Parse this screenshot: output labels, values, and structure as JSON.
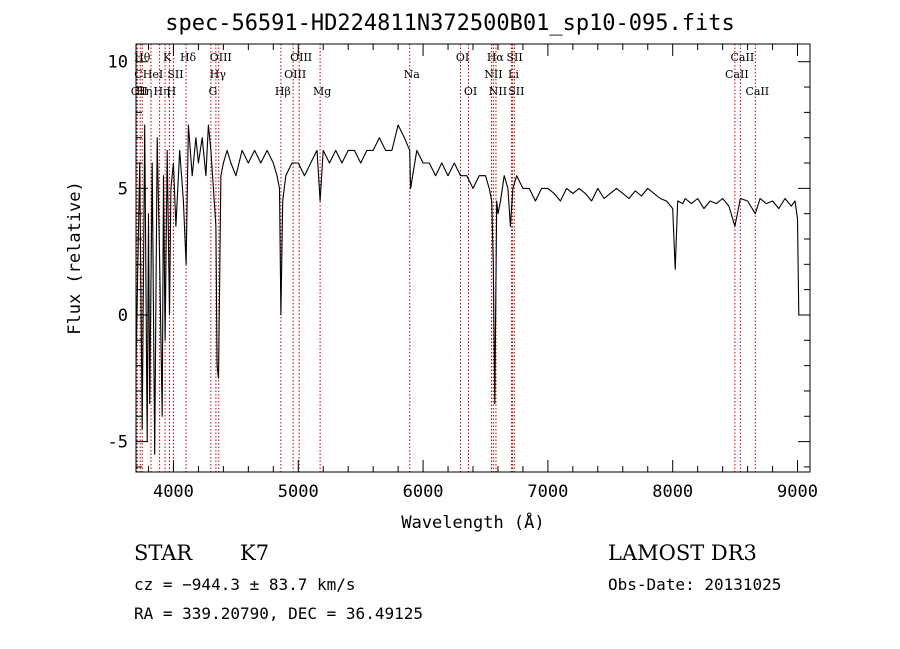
{
  "title": "spec-56591-HD224811N372500B01_sp10-095.fits",
  "chart_data": {
    "type": "line",
    "title": "spec-56591-HD224811N372500B01_sp10-095.fits",
    "xlabel": "Wavelength (Å)",
    "ylabel": "Flux (relative)",
    "xlim": [
      3700,
      9100
    ],
    "ylim": [
      -6.2,
      10.7
    ],
    "xticks": [
      "4000",
      "5000",
      "6000",
      "7000",
      "8000",
      "9000"
    ],
    "xtick_values": [
      4000,
      5000,
      6000,
      7000,
      8000,
      9000
    ],
    "yticks": [
      "-5",
      "0",
      "5",
      "10"
    ],
    "ytick_values": [
      -5,
      0,
      5,
      10
    ],
    "series": [
      {
        "name": "spectrum",
        "x": [
          3700,
          3730,
          3750,
          3770,
          3790,
          3800,
          3810,
          3830,
          3850,
          3870,
          3890,
          3910,
          3920,
          3933,
          3950,
          3968,
          3980,
          4000,
          4020,
          4050,
          4080,
          4101,
          4120,
          4150,
          4180,
          4200,
          4230,
          4260,
          4280,
          4300,
          4320,
          4340,
          4350,
          4361,
          4380,
          4400,
          4430,
          4460,
          4500,
          4550,
          4600,
          4650,
          4700,
          4750,
          4800,
          4830,
          4850,
          4861,
          4875,
          4900,
          4950,
          5000,
          5050,
          5100,
          5150,
          5175,
          5200,
          5250,
          5300,
          5350,
          5400,
          5450,
          5500,
          5550,
          5600,
          5650,
          5700,
          5750,
          5800,
          5850,
          5893,
          5900,
          5950,
          6000,
          6050,
          6100,
          6150,
          6200,
          6250,
          6300,
          6350,
          6400,
          6450,
          6500,
          6530,
          6550,
          6563,
          6575,
          6590,
          6600,
          6620,
          6650,
          6680,
          6700,
          6720,
          6750,
          6800,
          6850,
          6900,
          6950,
          7000,
          7050,
          7100,
          7150,
          7200,
          7250,
          7300,
          7350,
          7400,
          7450,
          7500,
          7550,
          7600,
          7650,
          7700,
          7750,
          7800,
          7850,
          7900,
          7950,
          8000,
          8020,
          8040,
          8080,
          8100,
          8150,
          8200,
          8250,
          8300,
          8350,
          8400,
          8450,
          8498,
          8542,
          8600,
          8662,
          8700,
          8750,
          8800,
          8850,
          8900,
          8950,
          8980,
          9000,
          9010
        ],
        "values": [
          -2.0,
          6.0,
          -4.5,
          7.5,
          -5.0,
          4.0,
          -3.5,
          6.0,
          -5.5,
          7.0,
          2.0,
          -4.0,
          5.5,
          -1.0,
          6.5,
          0.0,
          5.0,
          6.0,
          3.5,
          6.5,
          4.5,
          2.0,
          7.5,
          5.5,
          7.0,
          6.0,
          7.0,
          5.5,
          7.5,
          6.5,
          5.0,
          3.5,
          -2.0,
          -2.5,
          5.5,
          6.0,
          6.5,
          6.0,
          5.5,
          6.5,
          6.0,
          6.5,
          6.0,
          6.5,
          6.0,
          5.5,
          5.0,
          0.0,
          4.5,
          5.5,
          6.0,
          6.0,
          5.5,
          6.0,
          6.5,
          4.5,
          6.5,
          6.0,
          6.5,
          6.0,
          6.5,
          6.5,
          6.0,
          6.5,
          6.5,
          7.0,
          6.5,
          6.5,
          7.5,
          7.0,
          6.5,
          5.0,
          6.5,
          6.0,
          6.0,
          5.5,
          6.0,
          5.5,
          6.0,
          5.5,
          5.5,
          5.0,
          5.5,
          5.5,
          5.0,
          4.5,
          2.0,
          -3.5,
          4.5,
          4.0,
          4.5,
          5.5,
          5.0,
          3.5,
          5.0,
          5.5,
          5.0,
          5.0,
          4.5,
          5.0,
          5.0,
          4.8,
          4.5,
          5.0,
          4.8,
          5.0,
          4.8,
          4.5,
          5.0,
          4.6,
          4.8,
          5.0,
          4.8,
          4.6,
          4.9,
          4.7,
          5.0,
          4.8,
          4.6,
          4.5,
          4.2,
          1.8,
          4.5,
          4.4,
          4.6,
          4.4,
          4.6,
          4.2,
          4.5,
          4.4,
          4.6,
          4.3,
          3.5,
          4.6,
          4.5,
          4.0,
          4.6,
          4.4,
          4.5,
          4.2,
          4.6,
          4.3,
          4.5,
          3.8,
          0.0
        ]
      }
    ],
    "line_markers": [
      {
        "wavelength": 3704,
        "label": "C",
        "row": 1
      },
      {
        "wavelength": 3710,
        "label": "CII",
        "row": 2
      },
      {
        "wavelength": 3734,
        "label": "Hθ",
        "row": 0
      },
      {
        "wavelength": 3750,
        "label": "Hη",
        "row": 2
      },
      {
        "wavelength": 3820,
        "label": "HeI",
        "row": 1
      },
      {
        "wavelength": 3889,
        "label": "Hη",
        "row": 2
      },
      {
        "wavelength": 3933,
        "label": "K",
        "row": 0
      },
      {
        "wavelength": 3968,
        "label": "H",
        "row": 2
      },
      {
        "wavelength": 4000,
        "label": "SII",
        "row": 1
      },
      {
        "wavelength": 4101,
        "label": "Hδ",
        "row": 0
      },
      {
        "wavelength": 4300,
        "label": "G",
        "row": 2
      },
      {
        "wavelength": 4340,
        "label": "Hγ",
        "row": 1
      },
      {
        "wavelength": 4363,
        "label": "OIII",
        "row": 0
      },
      {
        "wavelength": 4861,
        "label": "Hβ",
        "row": 2
      },
      {
        "wavelength": 4959,
        "label": "OIII",
        "row": 1
      },
      {
        "wavelength": 5007,
        "label": "OIII",
        "row": 0
      },
      {
        "wavelength": 5175,
        "label": "Mg",
        "row": 2
      },
      {
        "wavelength": 5893,
        "label": "Na",
        "row": 1
      },
      {
        "wavelength": 6300,
        "label": "OI",
        "row": 0
      },
      {
        "wavelength": 6364,
        "label": "OI",
        "row": 2
      },
      {
        "wavelength": 6548,
        "label": "NII",
        "row": 1
      },
      {
        "wavelength": 6563,
        "label": "Hα",
        "row": 0
      },
      {
        "wavelength": 6584,
        "label": "NII",
        "row": 2
      },
      {
        "wavelength": 6708,
        "label": "Li",
        "row": 1
      },
      {
        "wavelength": 6717,
        "label": "SII",
        "row": 0
      },
      {
        "wavelength": 6731,
        "label": "SII",
        "row": 2
      },
      {
        "wavelength": 8498,
        "label": "CaII",
        "row": 1
      },
      {
        "wavelength": 8542,
        "label": "CaII",
        "row": 0
      },
      {
        "wavelength": 8662,
        "label": "CaII",
        "row": 2
      }
    ]
  },
  "info": {
    "class": "STAR",
    "subclass": "K7",
    "cz": "cz = −944.3 ± 83.7 km/s",
    "coords": "RA = 339.20790, DEC =  36.49125",
    "survey": "LAMOST DR3",
    "obs_date": "Obs-Date: 20131025"
  },
  "colors": {
    "marker_line": "#c00000",
    "spectrum": "#000000",
    "axis": "#000000"
  }
}
